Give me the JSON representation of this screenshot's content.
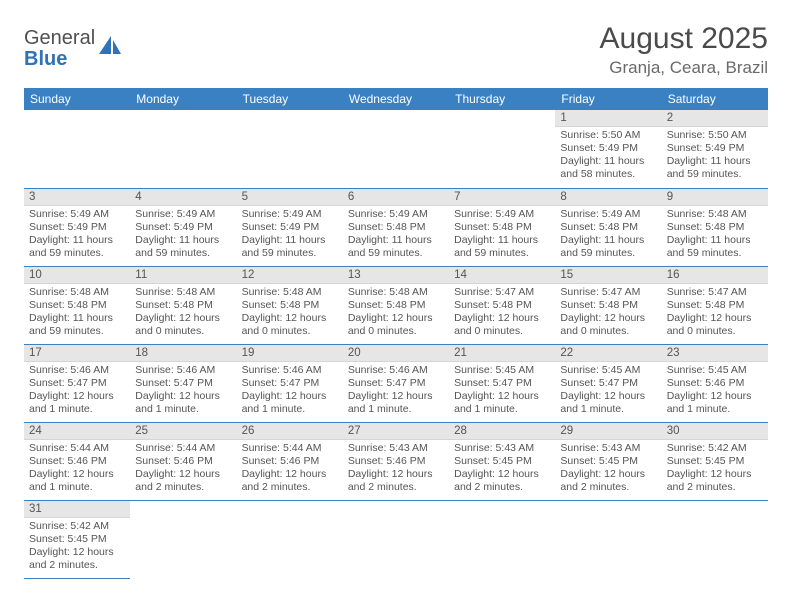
{
  "logo": {
    "text1": "General",
    "text2": "Blue"
  },
  "title": "August 2025",
  "location": "Granja, Ceara, Brazil",
  "colors": {
    "header_bg": "#3a81c4",
    "header_fg": "#ffffff",
    "daynum_bg": "#e6e6e6",
    "rule": "#3a81c4",
    "text": "#4a4a4a",
    "logo_blue": "#2f72b8"
  },
  "weekdays": [
    "Sunday",
    "Monday",
    "Tuesday",
    "Wednesday",
    "Thursday",
    "Friday",
    "Saturday"
  ],
  "weeks": [
    [
      null,
      null,
      null,
      null,
      null,
      {
        "n": "1",
        "sr": "5:50 AM",
        "ss": "5:49 PM",
        "dl": "11 hours and 58 minutes."
      },
      {
        "n": "2",
        "sr": "5:50 AM",
        "ss": "5:49 PM",
        "dl": "11 hours and 59 minutes."
      }
    ],
    [
      {
        "n": "3",
        "sr": "5:49 AM",
        "ss": "5:49 PM",
        "dl": "11 hours and 59 minutes."
      },
      {
        "n": "4",
        "sr": "5:49 AM",
        "ss": "5:49 PM",
        "dl": "11 hours and 59 minutes."
      },
      {
        "n": "5",
        "sr": "5:49 AM",
        "ss": "5:49 PM",
        "dl": "11 hours and 59 minutes."
      },
      {
        "n": "6",
        "sr": "5:49 AM",
        "ss": "5:48 PM",
        "dl": "11 hours and 59 minutes."
      },
      {
        "n": "7",
        "sr": "5:49 AM",
        "ss": "5:48 PM",
        "dl": "11 hours and 59 minutes."
      },
      {
        "n": "8",
        "sr": "5:49 AM",
        "ss": "5:48 PM",
        "dl": "11 hours and 59 minutes."
      },
      {
        "n": "9",
        "sr": "5:48 AM",
        "ss": "5:48 PM",
        "dl": "11 hours and 59 minutes."
      }
    ],
    [
      {
        "n": "10",
        "sr": "5:48 AM",
        "ss": "5:48 PM",
        "dl": "11 hours and 59 minutes."
      },
      {
        "n": "11",
        "sr": "5:48 AM",
        "ss": "5:48 PM",
        "dl": "12 hours and 0 minutes."
      },
      {
        "n": "12",
        "sr": "5:48 AM",
        "ss": "5:48 PM",
        "dl": "12 hours and 0 minutes."
      },
      {
        "n": "13",
        "sr": "5:48 AM",
        "ss": "5:48 PM",
        "dl": "12 hours and 0 minutes."
      },
      {
        "n": "14",
        "sr": "5:47 AM",
        "ss": "5:48 PM",
        "dl": "12 hours and 0 minutes."
      },
      {
        "n": "15",
        "sr": "5:47 AM",
        "ss": "5:48 PM",
        "dl": "12 hours and 0 minutes."
      },
      {
        "n": "16",
        "sr": "5:47 AM",
        "ss": "5:48 PM",
        "dl": "12 hours and 0 minutes."
      }
    ],
    [
      {
        "n": "17",
        "sr": "5:46 AM",
        "ss": "5:47 PM",
        "dl": "12 hours and 1 minute."
      },
      {
        "n": "18",
        "sr": "5:46 AM",
        "ss": "5:47 PM",
        "dl": "12 hours and 1 minute."
      },
      {
        "n": "19",
        "sr": "5:46 AM",
        "ss": "5:47 PM",
        "dl": "12 hours and 1 minute."
      },
      {
        "n": "20",
        "sr": "5:46 AM",
        "ss": "5:47 PM",
        "dl": "12 hours and 1 minute."
      },
      {
        "n": "21",
        "sr": "5:45 AM",
        "ss": "5:47 PM",
        "dl": "12 hours and 1 minute."
      },
      {
        "n": "22",
        "sr": "5:45 AM",
        "ss": "5:47 PM",
        "dl": "12 hours and 1 minute."
      },
      {
        "n": "23",
        "sr": "5:45 AM",
        "ss": "5:46 PM",
        "dl": "12 hours and 1 minute."
      }
    ],
    [
      {
        "n": "24",
        "sr": "5:44 AM",
        "ss": "5:46 PM",
        "dl": "12 hours and 1 minute."
      },
      {
        "n": "25",
        "sr": "5:44 AM",
        "ss": "5:46 PM",
        "dl": "12 hours and 2 minutes."
      },
      {
        "n": "26",
        "sr": "5:44 AM",
        "ss": "5:46 PM",
        "dl": "12 hours and 2 minutes."
      },
      {
        "n": "27",
        "sr": "5:43 AM",
        "ss": "5:46 PM",
        "dl": "12 hours and 2 minutes."
      },
      {
        "n": "28",
        "sr": "5:43 AM",
        "ss": "5:45 PM",
        "dl": "12 hours and 2 minutes."
      },
      {
        "n": "29",
        "sr": "5:43 AM",
        "ss": "5:45 PM",
        "dl": "12 hours and 2 minutes."
      },
      {
        "n": "30",
        "sr": "5:42 AM",
        "ss": "5:45 PM",
        "dl": "12 hours and 2 minutes."
      }
    ],
    [
      {
        "n": "31",
        "sr": "5:42 AM",
        "ss": "5:45 PM",
        "dl": "12 hours and 2 minutes."
      },
      null,
      null,
      null,
      null,
      null,
      null
    ]
  ],
  "labels": {
    "sunrise": "Sunrise:",
    "sunset": "Sunset:",
    "daylight": "Daylight:"
  }
}
